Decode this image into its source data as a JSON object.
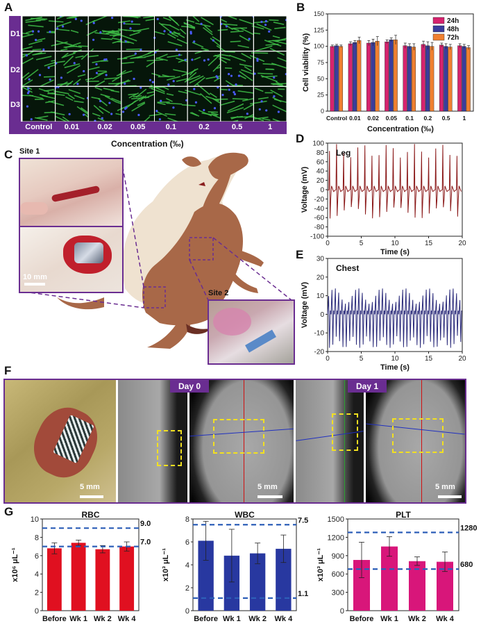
{
  "panels": {
    "A": {
      "label": "A",
      "rows": [
        "D1",
        "D2",
        "D3"
      ],
      "columns": [
        "Control",
        "0.01",
        "0.02",
        "0.05",
        "0.1",
        "0.2",
        "0.5",
        "1"
      ],
      "xlabel": "Concentration (‰)"
    },
    "B": {
      "label": "B"
    },
    "C": {
      "label": "C",
      "site1": "Site 1",
      "site2": "Site 2",
      "scale": "10 mm"
    },
    "D": {
      "label": "D"
    },
    "E": {
      "label": "E"
    },
    "F": {
      "label": "F",
      "day0": "Day 0",
      "day1": "Day 1",
      "scale1": "5 mm",
      "scale2": "5 mm",
      "scale3": "5 mm"
    },
    "G": {
      "label": "G"
    }
  },
  "colors": {
    "purple": "#6a2d91",
    "bar24h": "#d6236e",
    "bar48h": "#3a3d9c",
    "bar72h": "#f08030",
    "leg": "#8b1a1a",
    "chest": "#2a2a7a",
    "rbc": "#e01020",
    "wbc": "#2838a0",
    "plt": "#d8167a",
    "ref": "#2d5fb8"
  },
  "chart_data": [
    {
      "id": "B",
      "type": "bar",
      "title": "",
      "xlabel": "Concentration (‰)",
      "ylabel": "Cell viability (%)",
      "ylim": [
        0,
        150
      ],
      "yticks": [
        "0",
        "25",
        "50",
        "75",
        "100",
        "125",
        "150"
      ],
      "categories": [
        "Control",
        "0.01",
        "0.02",
        "0.05",
        "0.1",
        "0.2",
        "0.5",
        "1"
      ],
      "series": [
        {
          "name": "24h",
          "values": [
            100,
            104,
            105,
            107,
            101,
            103,
            102,
            101
          ],
          "errors": [
            2,
            3,
            4,
            3,
            4,
            5,
            3,
            3
          ]
        },
        {
          "name": "48h",
          "values": [
            101,
            106,
            106,
            110,
            100,
            101,
            100,
            100
          ],
          "errors": [
            2,
            3,
            5,
            3,
            4,
            6,
            4,
            3
          ]
        },
        {
          "name": "72h",
          "values": [
            100,
            109,
            108,
            110,
            99,
            100,
            99,
            98
          ],
          "errors": [
            2,
            5,
            7,
            7,
            5,
            6,
            4,
            3
          ]
        }
      ],
      "legend": "top-right"
    },
    {
      "id": "D",
      "type": "line",
      "title": "Leg",
      "xlabel": "Time  (s)",
      "ylabel": "Voltage (mV)",
      "xlim": [
        0,
        20
      ],
      "ylim": [
        -100,
        100
      ],
      "xticks": [
        "0",
        "5",
        "10",
        "15",
        "20"
      ],
      "yticks": [
        "-100",
        "-80",
        "-60",
        "-40",
        "-20",
        "0",
        "20",
        "40",
        "60",
        "80",
        "100"
      ],
      "signal": {
        "cycles": 19,
        "peak": 98,
        "trough": -62
      }
    },
    {
      "id": "E",
      "type": "line",
      "title": "Chest",
      "xlabel": "Time  (s)",
      "ylabel": "Voltage (mV)",
      "xlim": [
        0,
        20
      ],
      "ylim": [
        -20,
        30
      ],
      "xticks": [
        "0",
        "5",
        "10",
        "15",
        "20"
      ],
      "yticks": [
        "-20",
        "-10",
        "0",
        "10",
        "20",
        "30"
      ],
      "signal": {
        "cycles": 40,
        "peak": 14,
        "trough": -18
      }
    },
    {
      "id": "G1",
      "type": "bar",
      "title": "RBC",
      "ylabel": "x10⁶ μL⁻¹",
      "ylim": [
        0,
        10
      ],
      "yticks": [
        "0",
        "2",
        "4",
        "6",
        "8",
        "10"
      ],
      "categories": [
        "Before",
        "Wk 1",
        "Wk 2",
        "Wk 4"
      ],
      "values": [
        6.8,
        7.4,
        6.7,
        7.0
      ],
      "errors": [
        0.6,
        0.3,
        0.4,
        0.5
      ],
      "reference_lines": [
        9.0,
        7.0
      ],
      "reference_labels": [
        "9.0",
        "7.0"
      ]
    },
    {
      "id": "G2",
      "type": "bar",
      "title": "WBC",
      "ylabel": "x10³ μL⁻¹",
      "ylim": [
        0,
        8
      ],
      "yticks": [
        "0",
        "2",
        "4",
        "6",
        "8"
      ],
      "categories": [
        "Before",
        "Wk 1",
        "Wk 2",
        "Wk 4"
      ],
      "values": [
        6.1,
        4.8,
        5.0,
        5.4
      ],
      "errors": [
        1.7,
        2.3,
        0.9,
        1.2
      ],
      "reference_lines": [
        7.5,
        1.1
      ],
      "reference_labels": [
        "7.5",
        "1.1"
      ]
    },
    {
      "id": "G3",
      "type": "bar",
      "title": "PLT",
      "ylabel": "x10³ μL⁻¹",
      "ylim": [
        0,
        1500
      ],
      "yticks": [
        "0",
        "300",
        "600",
        "900",
        "1200",
        "1500"
      ],
      "categories": [
        "Before",
        "Wk 1",
        "Wk 2",
        "Wk 4"
      ],
      "values": [
        830,
        1050,
        810,
        800
      ],
      "errors": [
        290,
        160,
        70,
        160
      ],
      "reference_lines": [
        1280,
        680
      ],
      "reference_labels": [
        "1280",
        "680"
      ]
    }
  ]
}
